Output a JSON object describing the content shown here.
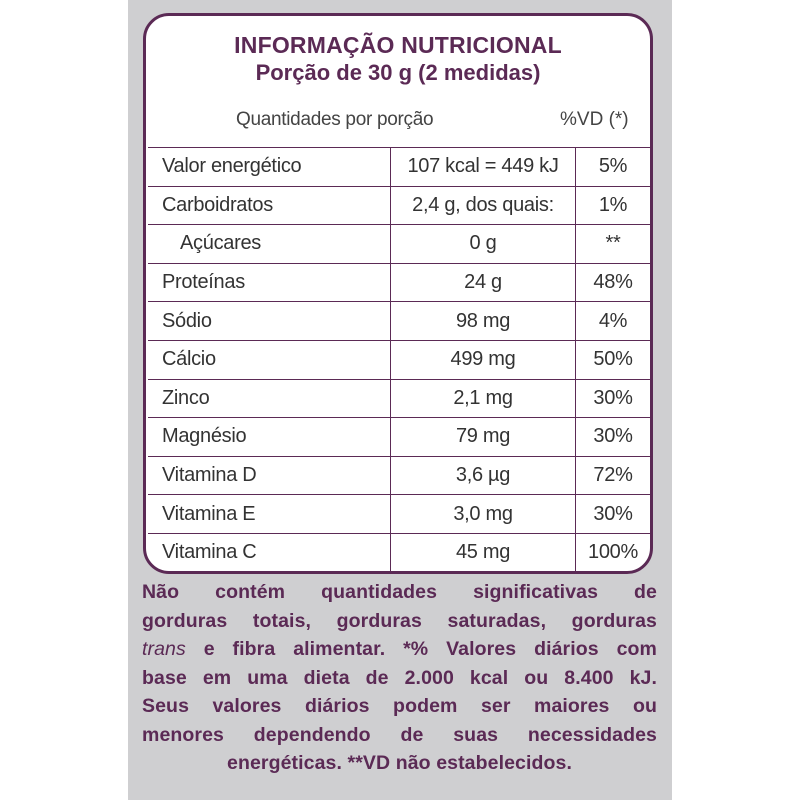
{
  "label": {
    "title": "INFORMAÇÃO NUTRICIONAL",
    "serving": "Porção de 30 g (2 medidas)",
    "header_quantity": "Quantidades por porção",
    "header_dv": "%VD (*)",
    "rows": [
      {
        "name": "Valor energético",
        "amount": "107 kcal = 449 kJ",
        "dv": "5%"
      },
      {
        "name": "Carboidratos",
        "amount": "2,4 g, dos quais:",
        "dv": "1%"
      },
      {
        "name": "Açúcares",
        "amount": "0 g",
        "dv": "**"
      },
      {
        "name": "Proteínas",
        "amount": "24 g",
        "dv": "48%"
      },
      {
        "name": "Sódio",
        "amount": "98 mg",
        "dv": "4%"
      },
      {
        "name": "Cálcio",
        "amount": "499 mg",
        "dv": "50%"
      },
      {
        "name": "Zinco",
        "amount": "2,1 mg",
        "dv": "30%"
      },
      {
        "name": "Magnésio",
        "amount": "79 mg",
        "dv": "30%"
      },
      {
        "name": "Vitamina D",
        "amount": "3,6 µg",
        "dv": "72%"
      },
      {
        "name": "Vitamina E",
        "amount": "3,0 mg",
        "dv": "30%"
      },
      {
        "name": "Vitamina C",
        "amount": "45 mg",
        "dv": "100%"
      }
    ],
    "footnote_lines": [
      "Não contém quantidades significativas de",
      "gorduras totais, gorduras saturadas, gorduras"
    ],
    "footnote_trans": "trans",
    "footnote_line3_rest": " e fibra alimentar. *% Valores diários com",
    "footnote_lines_b": [
      "base em uma dieta de 2.000 kcal ou 8.400 kJ.",
      "Seus valores diários podem ser maiores ou",
      "menores dependendo de suas necessidades"
    ],
    "footnote_last": "energéticas. **VD não estabelecidos."
  }
}
